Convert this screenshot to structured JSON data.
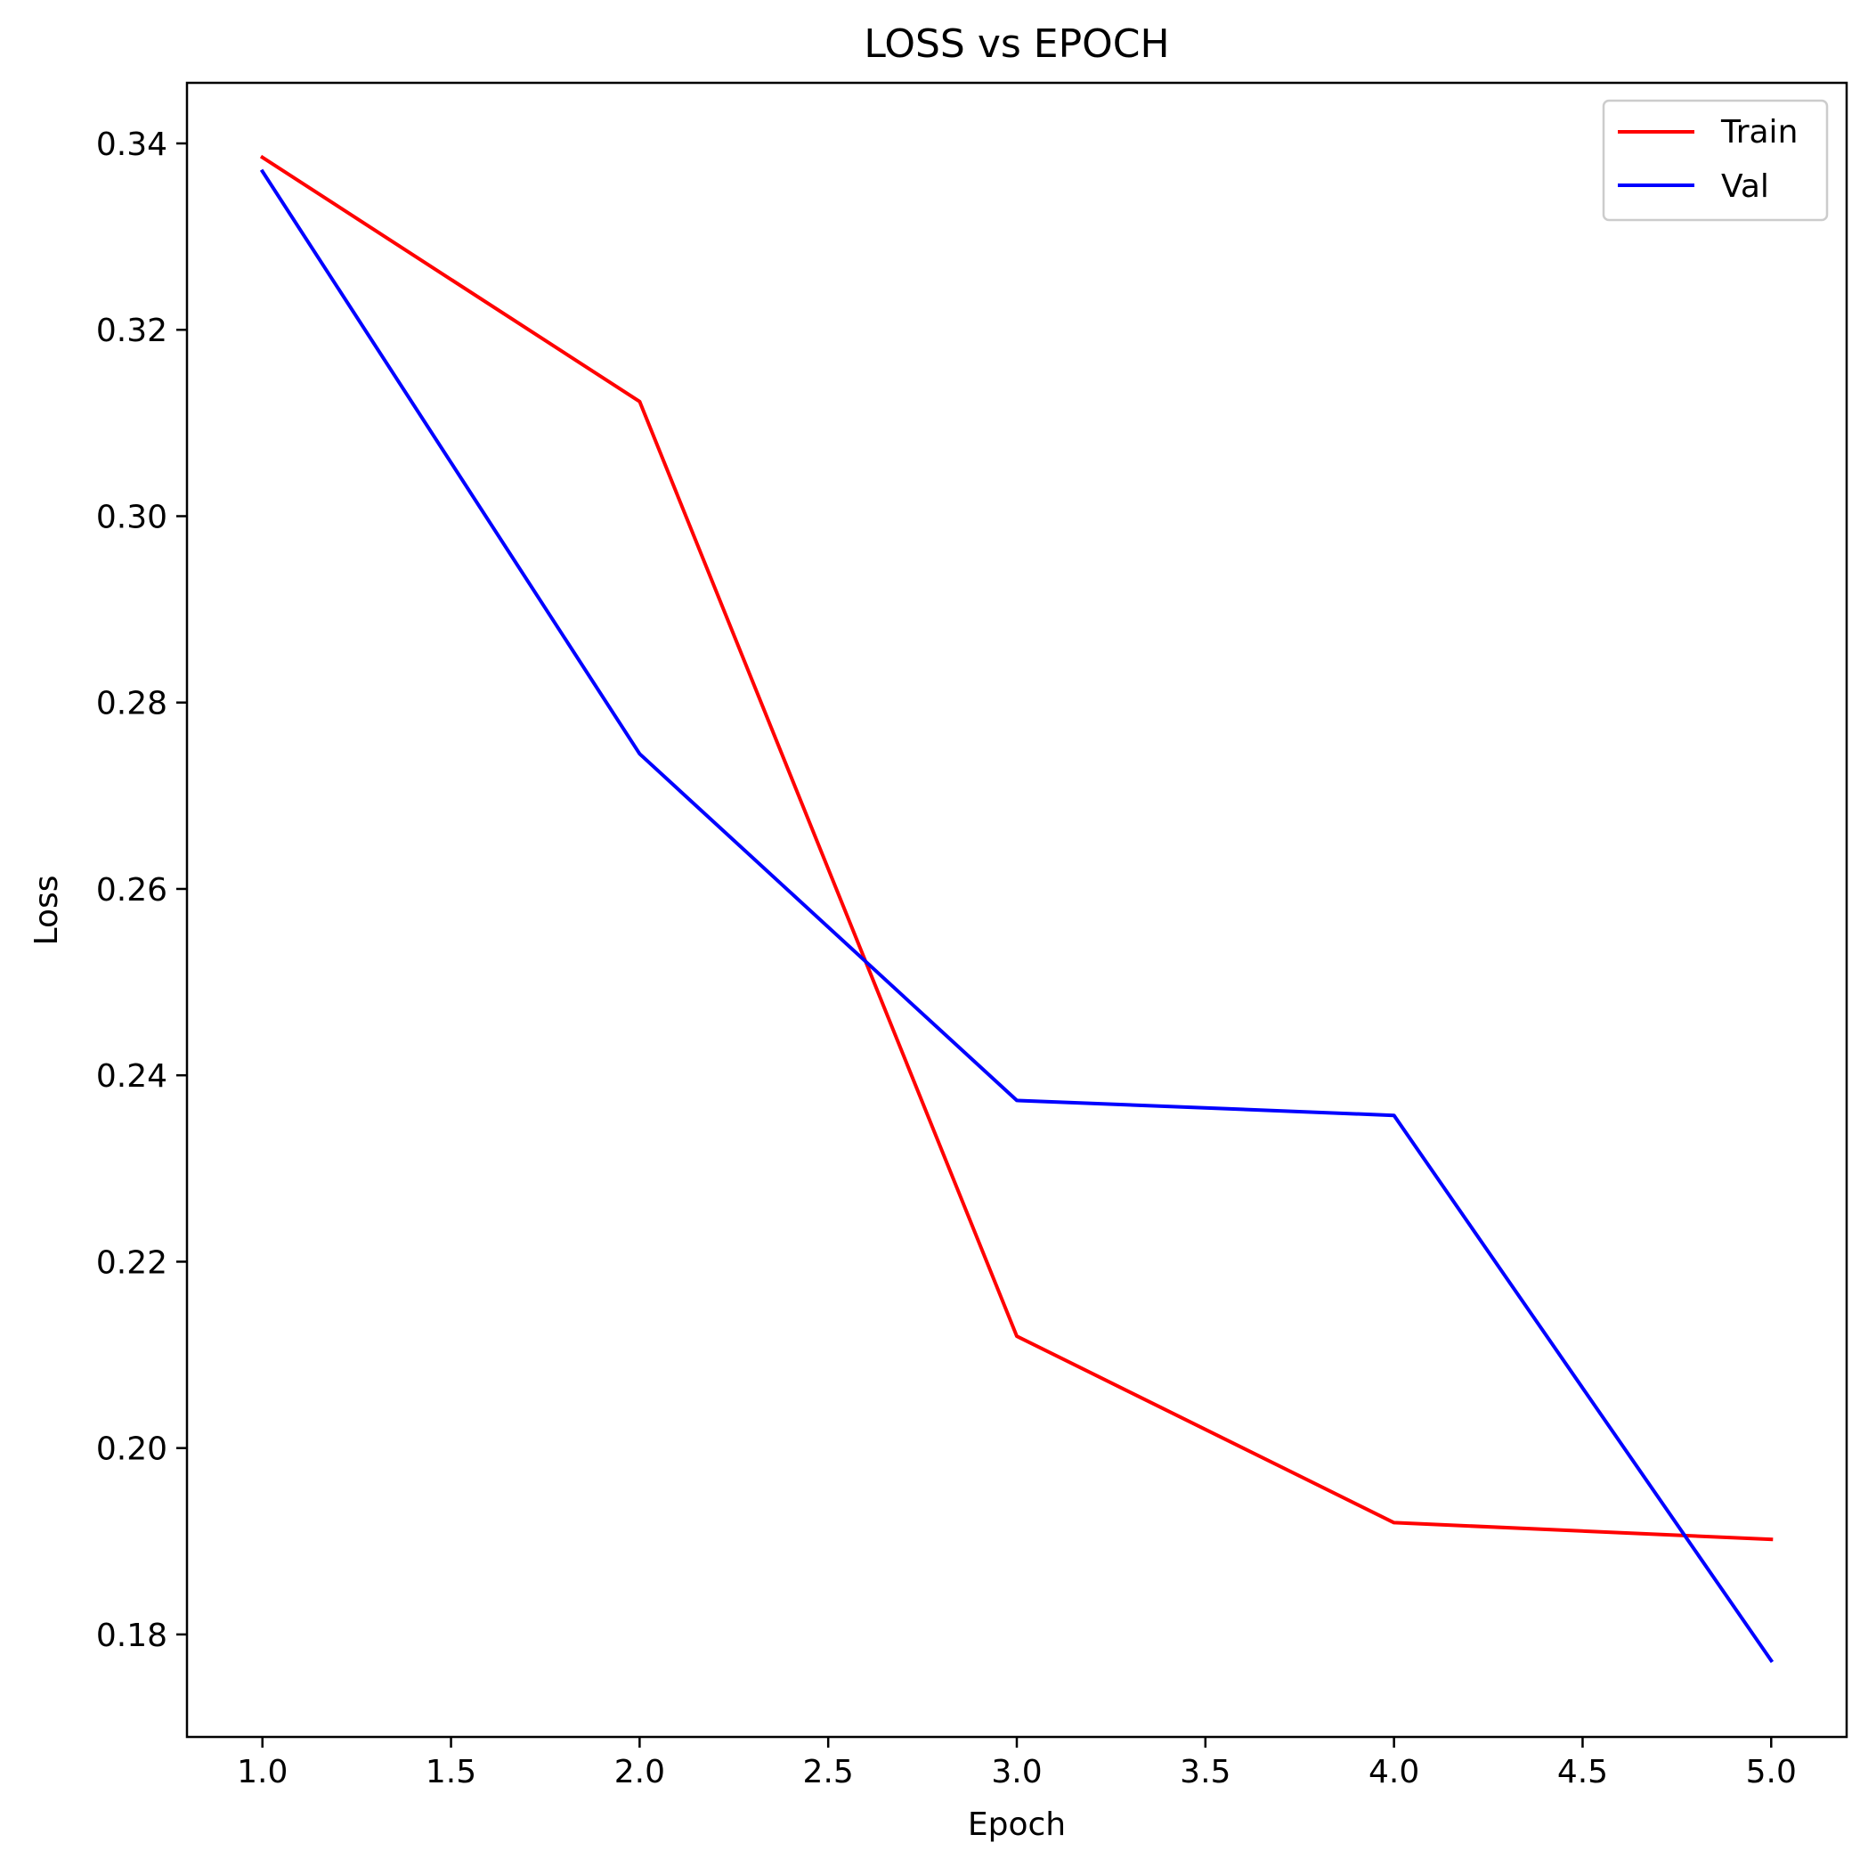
{
  "chart_data": {
    "type": "line",
    "title": "LOSS vs EPOCH",
    "xlabel": "Epoch",
    "ylabel": "Loss",
    "x": [
      1.0,
      2.0,
      3.0,
      4.0,
      5.0
    ],
    "xlim": [
      0.8,
      5.2
    ],
    "ylim": [
      0.169,
      0.3465
    ],
    "xticks": [
      1.0,
      1.5,
      2.0,
      2.5,
      3.0,
      3.5,
      4.0,
      4.5,
      5.0
    ],
    "xtick_labels": [
      "1.0",
      "1.5",
      "2.0",
      "2.5",
      "3.0",
      "3.5",
      "4.0",
      "4.5",
      "5.0"
    ],
    "yticks": [
      0.18,
      0.2,
      0.22,
      0.24,
      0.26,
      0.28,
      0.3,
      0.32,
      0.34
    ],
    "ytick_labels": [
      "0.18",
      "0.20",
      "0.22",
      "0.24",
      "0.26",
      "0.28",
      "0.30",
      "0.32",
      "0.34"
    ],
    "grid": false,
    "legend_position": "top-right",
    "series": [
      {
        "name": "Train",
        "color": "#ff0000",
        "values": [
          0.3385,
          0.3123,
          0.212,
          0.192,
          0.1902
        ]
      },
      {
        "name": "Val",
        "color": "#0000ff",
        "values": [
          0.337,
          0.2745,
          0.2373,
          0.2357,
          0.1772
        ]
      }
    ]
  }
}
